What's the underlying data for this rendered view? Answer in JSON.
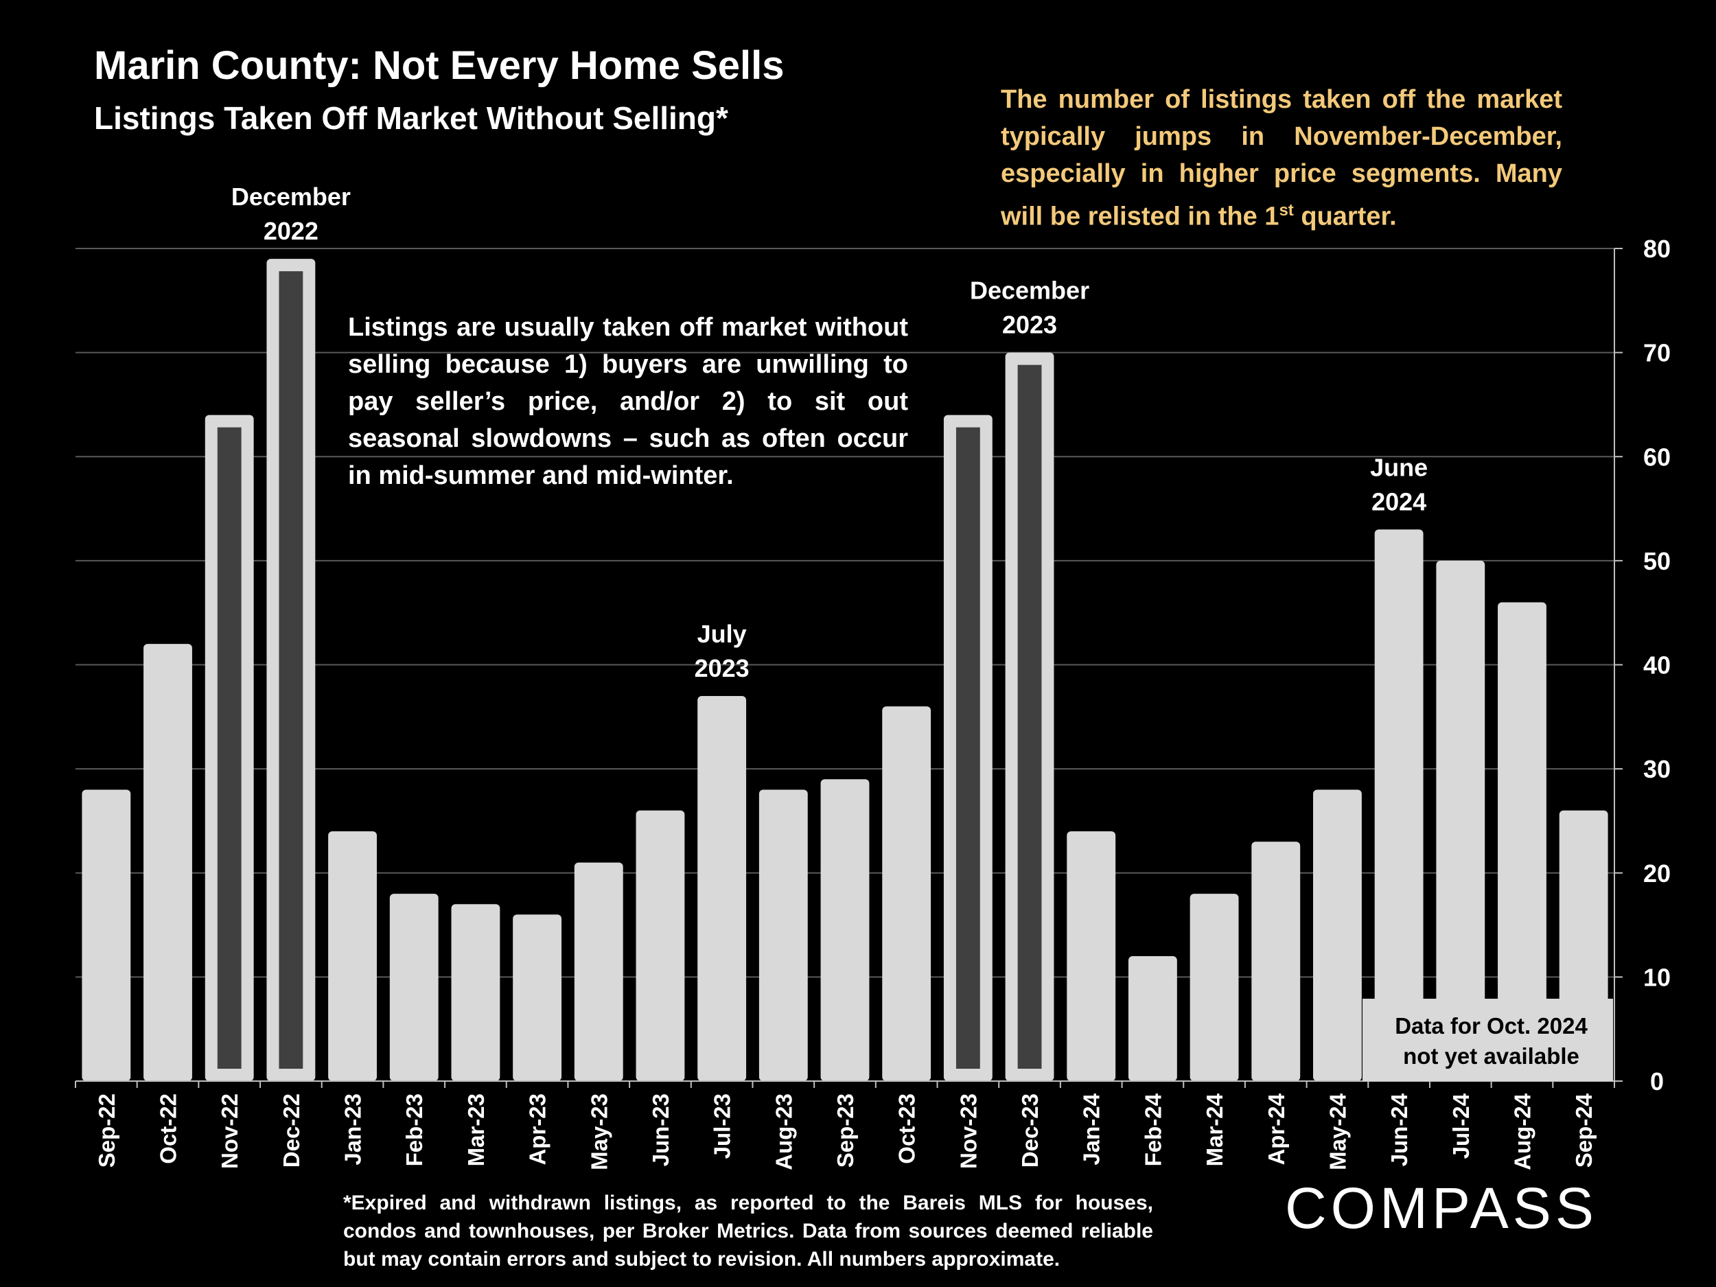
{
  "header": {
    "title": "Marin County: Not Every Home Sells",
    "subtitle": "Listings Taken Off Market Without Selling*"
  },
  "notes": {
    "seasonal": "The number of listings taken off the market typically jumps in November-December, especially in higher price segments. Many will be relisted in the 1st quarter.",
    "reasons": "Listings are usually taken off market without selling because 1) buyers are unwilling to pay seller’s price, and/or 2) to sit out seasonal slowdowns – such as often occur in mid-summer and mid-winter.",
    "footnote": "*Expired and withdrawn listings, as reported to the Bareis MLS for houses, condos and townhouses, per Broker Metrics. Data from sources deemed reliable but may contain errors and subject to revision. All numbers approximate.",
    "data_unavailable": "Data for Oct. 2024 not yet available"
  },
  "logo": {
    "text": "COMPASS"
  },
  "colors": {
    "bar": "#d9d9d9",
    "bar_highlight_inner": "#404040",
    "accent_text": "#f3c97a",
    "background": "#000000",
    "grid": "#595959"
  },
  "chart_data": {
    "type": "bar",
    "categories": [
      "Sep-22",
      "Oct-22",
      "Nov-22",
      "Dec-22",
      "Jan-23",
      "Feb-23",
      "Mar-23",
      "Apr-23",
      "May-23",
      "Jun-23",
      "Jul-23",
      "Aug-23",
      "Sep-23",
      "Oct-23",
      "Nov-23",
      "Dec-23",
      "Jan-24",
      "Feb-24",
      "Mar-24",
      "Apr-24",
      "May-24",
      "Jun-24",
      "Jul-24",
      "Aug-24",
      "Sep-24"
    ],
    "values": [
      28,
      42,
      64,
      79,
      24,
      18,
      17,
      16,
      21,
      26,
      37,
      28,
      29,
      36,
      64,
      70,
      24,
      12,
      18,
      23,
      28,
      53,
      50,
      46,
      26
    ],
    "highlighted": [
      "Nov-22",
      "Dec-22",
      "Nov-23",
      "Dec-23"
    ],
    "yaxis": {
      "position": "right",
      "ylim": [
        0,
        80
      ],
      "ticks": [
        0,
        10,
        20,
        30,
        40,
        50,
        60,
        70,
        80
      ]
    },
    "grid": true,
    "annotations": [
      {
        "category": "Dec-22",
        "lines": [
          "December",
          "2022"
        ]
      },
      {
        "category": "Jul-23",
        "lines": [
          "July",
          "2023"
        ]
      },
      {
        "category": "Dec-23",
        "lines": [
          "December",
          "2023"
        ]
      },
      {
        "category": "Jun-24",
        "lines": [
          "June",
          "2024"
        ]
      }
    ]
  }
}
